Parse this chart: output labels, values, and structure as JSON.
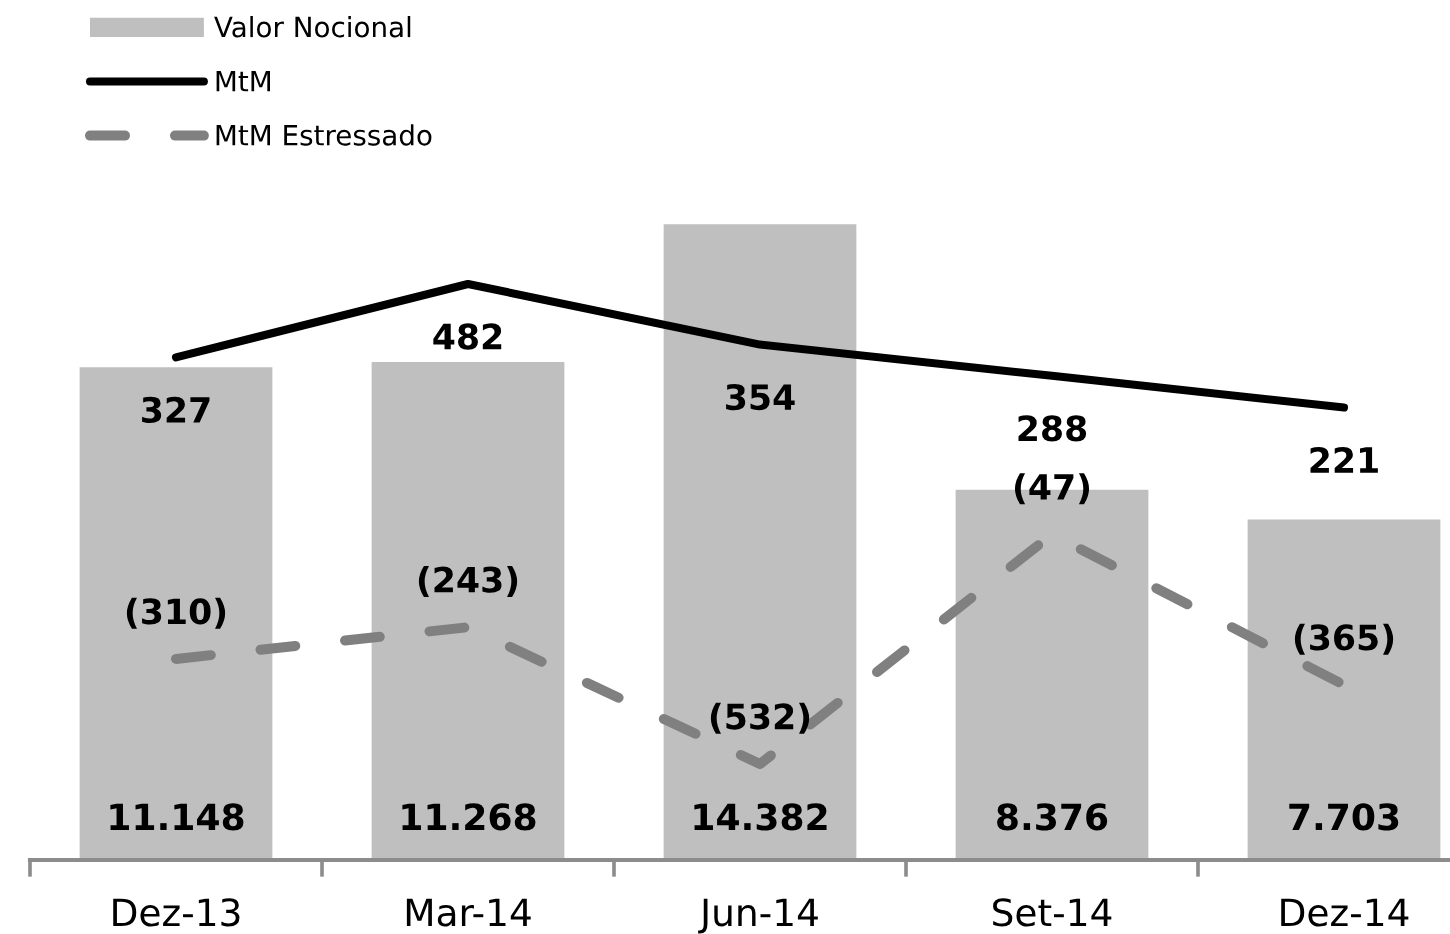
{
  "chart_data": {
    "type": "bar",
    "categories": [
      "Dez-13",
      "Mar-14",
      "Jun-14",
      "Set-14",
      "Dez-14"
    ],
    "series": [
      {
        "name": "Valor Nocional",
        "color": "#bfbfbf",
        "values": [
          11148,
          11268,
          14382,
          8376,
          7703
        ],
        "value_labels": [
          "11.148",
          "11.268",
          "14.382",
          "8.376",
          "7.703"
        ]
      },
      {
        "name": "MtM",
        "type": "line",
        "axis": "y2",
        "color": "#000000",
        "line_style": "solid",
        "values": [
          327,
          482,
          354,
          288,
          221
        ],
        "value_labels": [
          "327",
          "482",
          "354",
          "288",
          "221"
        ]
      },
      {
        "name": "MtM Estressado",
        "type": "line",
        "axis": "y2",
        "color": "#808080",
        "line_style": "dashed",
        "values": [
          -310,
          -243,
          -532,
          -47,
          -365
        ],
        "value_labels": [
          "(310)",
          "(243)",
          "(532)",
          "(47)",
          "(365)"
        ]
      }
    ],
    "tick_labels": "x",
    "legend": "top left",
    "grid": false
  }
}
